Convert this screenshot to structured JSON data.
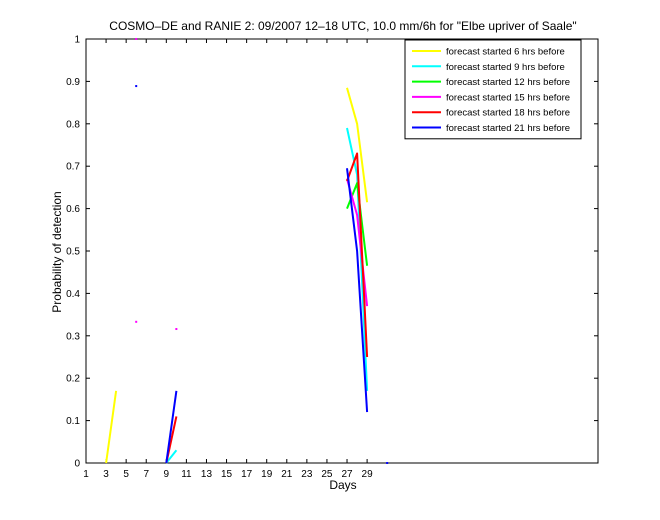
{
  "chart_data": {
    "type": "line",
    "title": "COSMO–DE and RANIE 2: 09/2007 12–18 UTC, 10.0 mm/6h for \"Elbe upriver of Saale\"",
    "xlabel": "Days",
    "ylabel": "Probability of detection",
    "xlim": [
      1,
      52
    ],
    "ylim": [
      0,
      1
    ],
    "xticks": [
      1,
      3,
      5,
      7,
      9,
      11,
      13,
      15,
      17,
      19,
      21,
      23,
      25,
      27,
      29
    ],
    "yticks": [
      0,
      0.1,
      0.2,
      0.3,
      0.4,
      0.5,
      0.6,
      0.7,
      0.8,
      0.9,
      1
    ],
    "xtick_labels": [
      "1",
      "3",
      "5",
      "7",
      "9",
      "11",
      "13",
      "15",
      "17",
      "19",
      "21",
      "23",
      "25",
      "27",
      "29"
    ],
    "ytick_labels": [
      "0",
      "0.1",
      "0.2",
      "0.3",
      "0.4",
      "0.5",
      "0.6",
      "0.7",
      "0.8",
      "0.9",
      "1"
    ],
    "grid": false,
    "legend_position": "top-right",
    "series": [
      {
        "name": "forecast started 6 hrs before",
        "color": "#ffff00",
        "segments": [
          [
            [
              3,
              0.0
            ],
            [
              4,
              0.17
            ]
          ],
          [
            [
              27,
              0.885
            ],
            [
              28,
              0.8
            ],
            [
              29,
              0.615
            ]
          ]
        ],
        "points": []
      },
      {
        "name": "forecast started 9 hrs before",
        "color": "#00ffff",
        "segments": [
          [
            [
              9,
              0.0
            ],
            [
              10,
              0.03
            ]
          ],
          [
            [
              27,
              0.79
            ],
            [
              28,
              0.68
            ],
            [
              29,
              0.17
            ]
          ]
        ],
        "points": []
      },
      {
        "name": "forecast started 12 hrs before",
        "color": "#00ff00",
        "segments": [
          [
            [
              27,
              0.6
            ],
            [
              28,
              0.66
            ],
            [
              29,
              0.465
            ]
          ]
        ],
        "points": []
      },
      {
        "name": "forecast started 15 hrs before",
        "color": "#ff00ff",
        "segments": [
          [
            [
              27,
              0.67
            ],
            [
              28,
              0.585
            ],
            [
              29,
              0.37
            ]
          ]
        ],
        "points": [
          [
            6,
            1.0
          ],
          [
            6,
            0.333
          ],
          [
            10,
            0.316
          ]
        ]
      },
      {
        "name": "forecast started 18 hrs before",
        "color": "#ff0000",
        "segments": [
          [
            [
              9,
              0.0
            ],
            [
              10,
              0.11
            ]
          ],
          [
            [
              27,
              0.665
            ],
            [
              28,
              0.73
            ],
            [
              29,
              0.25
            ]
          ]
        ],
        "points": []
      },
      {
        "name": "forecast started 21 hrs before",
        "color": "#0000ff",
        "segments": [
          [
            [
              9,
              0.0
            ],
            [
              10,
              0.17
            ]
          ],
          [
            [
              27,
              0.695
            ],
            [
              28,
              0.5
            ],
            [
              29,
              0.12
            ]
          ]
        ],
        "points": [
          [
            6,
            0.889
          ],
          [
            31,
            0.0
          ]
        ]
      }
    ]
  }
}
